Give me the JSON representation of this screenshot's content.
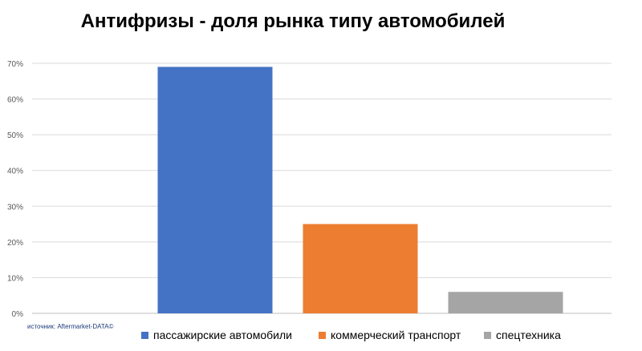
{
  "chart_data": {
    "type": "bar",
    "title": "Антифризы - доля рынка типу автомобилей",
    "categories": [
      "пассажирские автомобили",
      "коммерческий транспорт",
      "спецтехника"
    ],
    "values": [
      0.69,
      0.25,
      0.06
    ],
    "colors": [
      "#4472c4",
      "#ed7d31",
      "#a5a5a5"
    ],
    "ylim": [
      0,
      0.7
    ],
    "yticks": [
      "0%",
      "10%",
      "20%",
      "30%",
      "40%",
      "50%",
      "60%",
      "70%"
    ],
    "grid": true,
    "legend_position": "bottom",
    "xlabel": "",
    "ylabel": ""
  },
  "source_note": "источник: Aftermarket-DATA©"
}
